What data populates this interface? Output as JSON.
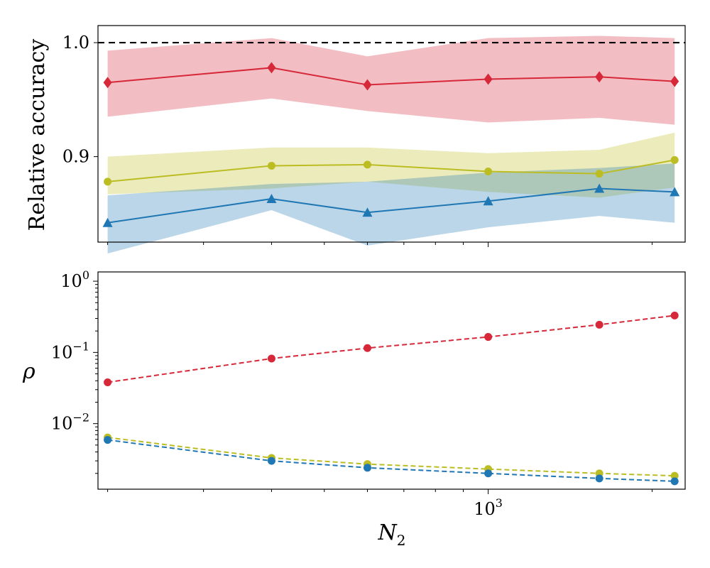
{
  "chart_data": [
    {
      "type": "line",
      "panel": "top",
      "x": [
        200,
        400,
        600,
        1000,
        1600,
        2200
      ],
      "xscale": "log",
      "xlim": [
        192,
        2300
      ],
      "ylim": [
        0.825,
        1.015
      ],
      "ylabel": "Relative accuracy",
      "ytick_values": [
        0.9,
        1.0
      ],
      "ytick_labels": [
        "0.9",
        "1.0"
      ],
      "reference_line": {
        "y": 1.0,
        "style": "dashed",
        "color": "#000000"
      },
      "series": [
        {
          "name": "red",
          "color": "#d62839",
          "marker": "diamond",
          "values": [
            0.965,
            0.978,
            0.963,
            0.968,
            0.97,
            0.966
          ],
          "band_low": [
            0.935,
            0.951,
            0.94,
            0.93,
            0.934,
            0.928
          ],
          "band_high": [
            0.993,
            1.004,
            0.988,
            1.004,
            1.006,
            1.004
          ]
        },
        {
          "name": "yellow",
          "color": "#bcbd22",
          "marker": "circle",
          "values": [
            0.878,
            0.892,
            0.893,
            0.887,
            0.885,
            0.897
          ],
          "band_low": [
            0.867,
            0.872,
            0.878,
            0.869,
            0.864,
            0.873
          ],
          "band_high": [
            0.9,
            0.908,
            0.908,
            0.903,
            0.906,
            0.921
          ]
        },
        {
          "name": "blue",
          "color": "#1f77b4",
          "marker": "triangle",
          "values": [
            0.842,
            0.863,
            0.851,
            0.861,
            0.872,
            0.869
          ],
          "band_low": [
            0.815,
            0.853,
            0.822,
            0.838,
            0.848,
            0.842
          ],
          "band_high": [
            0.866,
            0.876,
            0.878,
            0.886,
            0.89,
            0.894
          ]
        }
      ]
    },
    {
      "type": "line",
      "panel": "bottom",
      "x": [
        200,
        400,
        600,
        1000,
        1600,
        2200
      ],
      "xscale": "log",
      "xlim": [
        192,
        2300
      ],
      "yscale": "log",
      "ylim": [
        0.0012,
        1.35
      ],
      "xlabel_base": "N",
      "xlabel_sub": "2",
      "ylabel": "ρ",
      "ytick_values": [
        1,
        0.1,
        0.01
      ],
      "ytick_bases": [
        "10",
        "10",
        "10"
      ],
      "ytick_exps": [
        "0",
        "−1",
        "−2"
      ],
      "xtick_major_values": [
        1000
      ],
      "xtick_major_bases": [
        "10"
      ],
      "xtick_major_exps": [
        "3"
      ],
      "xtick_minor_values": [
        200,
        300,
        400,
        500,
        600,
        700,
        800,
        900,
        2000
      ],
      "series": [
        {
          "name": "red",
          "color": "#d62839",
          "marker": "circle",
          "linestyle": "dashed",
          "values": [
            0.038,
            0.082,
            0.115,
            0.165,
            0.245,
            0.33
          ]
        },
        {
          "name": "yellow",
          "color": "#bcbd22",
          "marker": "circle",
          "linestyle": "dashed",
          "values": [
            0.0064,
            0.0033,
            0.0027,
            0.0023,
            0.002,
            0.00185
          ]
        },
        {
          "name": "blue",
          "color": "#1f77b4",
          "marker": "circle",
          "linestyle": "dashed",
          "values": [
            0.0059,
            0.003,
            0.0024,
            0.002,
            0.0017,
            0.00155
          ]
        }
      ]
    }
  ]
}
